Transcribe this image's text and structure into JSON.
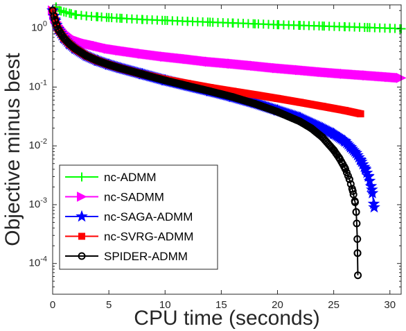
{
  "chart_data": {
    "type": "line",
    "title": "",
    "xlabel": "CPU time (seconds)",
    "ylabel": "Objective minus best",
    "xlim": [
      0,
      31
    ],
    "ylim": [
      3e-05,
      2.5
    ],
    "yscale": "log",
    "x_ticks": [
      0,
      5,
      10,
      15,
      20,
      25,
      30
    ],
    "y_ticks": [
      {
        "value": 1,
        "base": "10",
        "exp": "0"
      },
      {
        "value": 0.1,
        "base": "10",
        "exp": "-1"
      },
      {
        "value": 0.01,
        "base": "10",
        "exp": "-2"
      },
      {
        "value": 0.001,
        "base": "10",
        "exp": "-3"
      },
      {
        "value": 0.0001,
        "base": "10",
        "exp": "-4"
      }
    ],
    "grid": false,
    "legend_position": "bottom-left",
    "series": [
      {
        "name": "nc-ADMM",
        "color": "#00ff00",
        "marker": "plus",
        "x": [
          0.3,
          0.6,
          1.0,
          1.5,
          2,
          3,
          4,
          5,
          6,
          8,
          10,
          12,
          14,
          16,
          18,
          20,
          22,
          24,
          26,
          28,
          30,
          31
        ],
        "y": [
          2.3,
          2.0,
          1.9,
          1.8,
          1.7,
          1.62,
          1.57,
          1.52,
          1.48,
          1.41,
          1.36,
          1.31,
          1.27,
          1.23,
          1.19,
          1.15,
          1.12,
          1.09,
          1.06,
          1.03,
          1.0,
          0.98
        ]
      },
      {
        "name": "nc-SADMM",
        "color": "#ff00ff",
        "marker": "triangle-right",
        "x": [
          0,
          0.2,
          0.5,
          1,
          1.5,
          2,
          3,
          4,
          5,
          6,
          8,
          10,
          12,
          14,
          16,
          18,
          20,
          22,
          24,
          26,
          28,
          30,
          31
        ],
        "y": [
          2.0,
          1.5,
          1.1,
          0.85,
          0.72,
          0.64,
          0.55,
          0.5,
          0.45,
          0.42,
          0.37,
          0.33,
          0.3,
          0.27,
          0.25,
          0.23,
          0.21,
          0.195,
          0.18,
          0.168,
          0.158,
          0.148,
          0.143
        ]
      },
      {
        "name": "nc-SAGA-ADMM",
        "color": "#0000ff",
        "marker": "star",
        "x": [
          0,
          0.2,
          0.5,
          1,
          1.5,
          2,
          3,
          4,
          5,
          6,
          8,
          10,
          12,
          14,
          16,
          18,
          20,
          22,
          24,
          25,
          26,
          26.5,
          27,
          27.4,
          27.8,
          28.1,
          28.4,
          28.6
        ],
        "y": [
          2.0,
          1.4,
          0.95,
          0.68,
          0.54,
          0.45,
          0.34,
          0.28,
          0.24,
          0.21,
          0.165,
          0.13,
          0.105,
          0.085,
          0.068,
          0.053,
          0.04,
          0.03,
          0.02,
          0.016,
          0.012,
          0.0095,
          0.0075,
          0.0057,
          0.0041,
          0.003,
          0.0018,
          0.0009
        ]
      },
      {
        "name": "nc-SVRG-ADMM",
        "color": "#ff0000",
        "marker": "square",
        "x": [
          0,
          0.2,
          0.5,
          1,
          1.5,
          2,
          3,
          4,
          5,
          6,
          8,
          10,
          12,
          14,
          16,
          18,
          20,
          22,
          24,
          26,
          27.4
        ],
        "y": [
          2.0,
          1.4,
          0.95,
          0.68,
          0.54,
          0.45,
          0.34,
          0.28,
          0.24,
          0.21,
          0.165,
          0.135,
          0.115,
          0.098,
          0.085,
          0.074,
          0.064,
          0.055,
          0.047,
          0.04,
          0.035
        ]
      },
      {
        "name": "SPIDER-ADMM",
        "color": "#000000",
        "marker": "circle",
        "x": [
          0,
          0.2,
          0.5,
          1,
          1.5,
          2,
          3,
          4,
          5,
          6,
          8,
          10,
          12,
          14,
          16,
          18,
          20,
          22,
          23,
          24,
          25,
          25.5,
          26,
          26.4,
          26.7,
          26.9,
          27.0,
          27.05,
          27.1,
          27.12,
          27.15
        ],
        "y": [
          2.0,
          1.4,
          0.95,
          0.68,
          0.54,
          0.45,
          0.34,
          0.28,
          0.24,
          0.21,
          0.165,
          0.13,
          0.105,
          0.085,
          0.068,
          0.052,
          0.038,
          0.026,
          0.02,
          0.014,
          0.0085,
          0.0062,
          0.0042,
          0.0027,
          0.0017,
          0.0011,
          0.00075,
          0.00048,
          0.00026,
          0.00015,
          6.3e-05
        ]
      }
    ]
  }
}
